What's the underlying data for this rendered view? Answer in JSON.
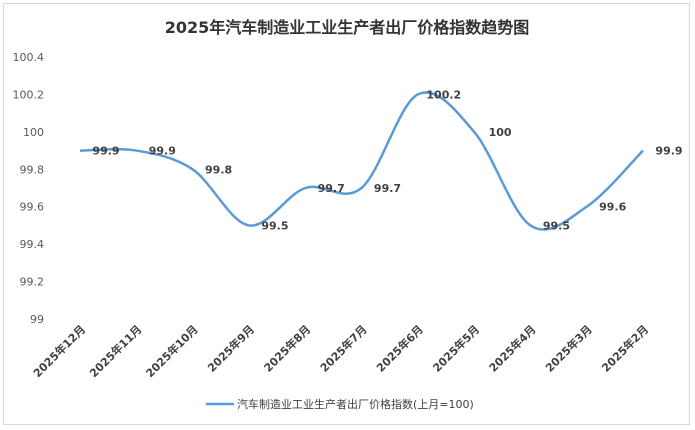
{
  "chart_data": {
    "type": "line",
    "title": "2025年汽车制造业工业生产者出厂价格指数趋势图",
    "categories": [
      "2025年12月",
      "2025年11月",
      "2025年10月",
      "2025年9月",
      "2025年8月",
      "2025年7月",
      "2025年6月",
      "2025年5月",
      "2025年4月",
      "2025年3月",
      "2025年2月"
    ],
    "series": [
      {
        "name": "汽车制造业工业生产者出厂价格指数(上月=100)",
        "values": [
          99.9,
          99.9,
          99.8,
          99.5,
          99.7,
          99.7,
          100.2,
          100,
          99.5,
          99.6,
          99.9
        ],
        "color": "#5b9bd5",
        "smooth": true
      }
    ],
    "yticks": [
      "99",
      "99.2",
      "99.4",
      "99.6",
      "99.8",
      "100",
      "100.2",
      "100.4"
    ],
    "ylim": [
      99,
      100.4
    ],
    "grid": false,
    "legend": "bottom",
    "data_labels": [
      "99.9",
      "99.9",
      "99.8",
      "99.5",
      "99.7",
      "99.7",
      "100.2",
      "100",
      "99.5",
      "99.6",
      "99.9"
    ]
  }
}
